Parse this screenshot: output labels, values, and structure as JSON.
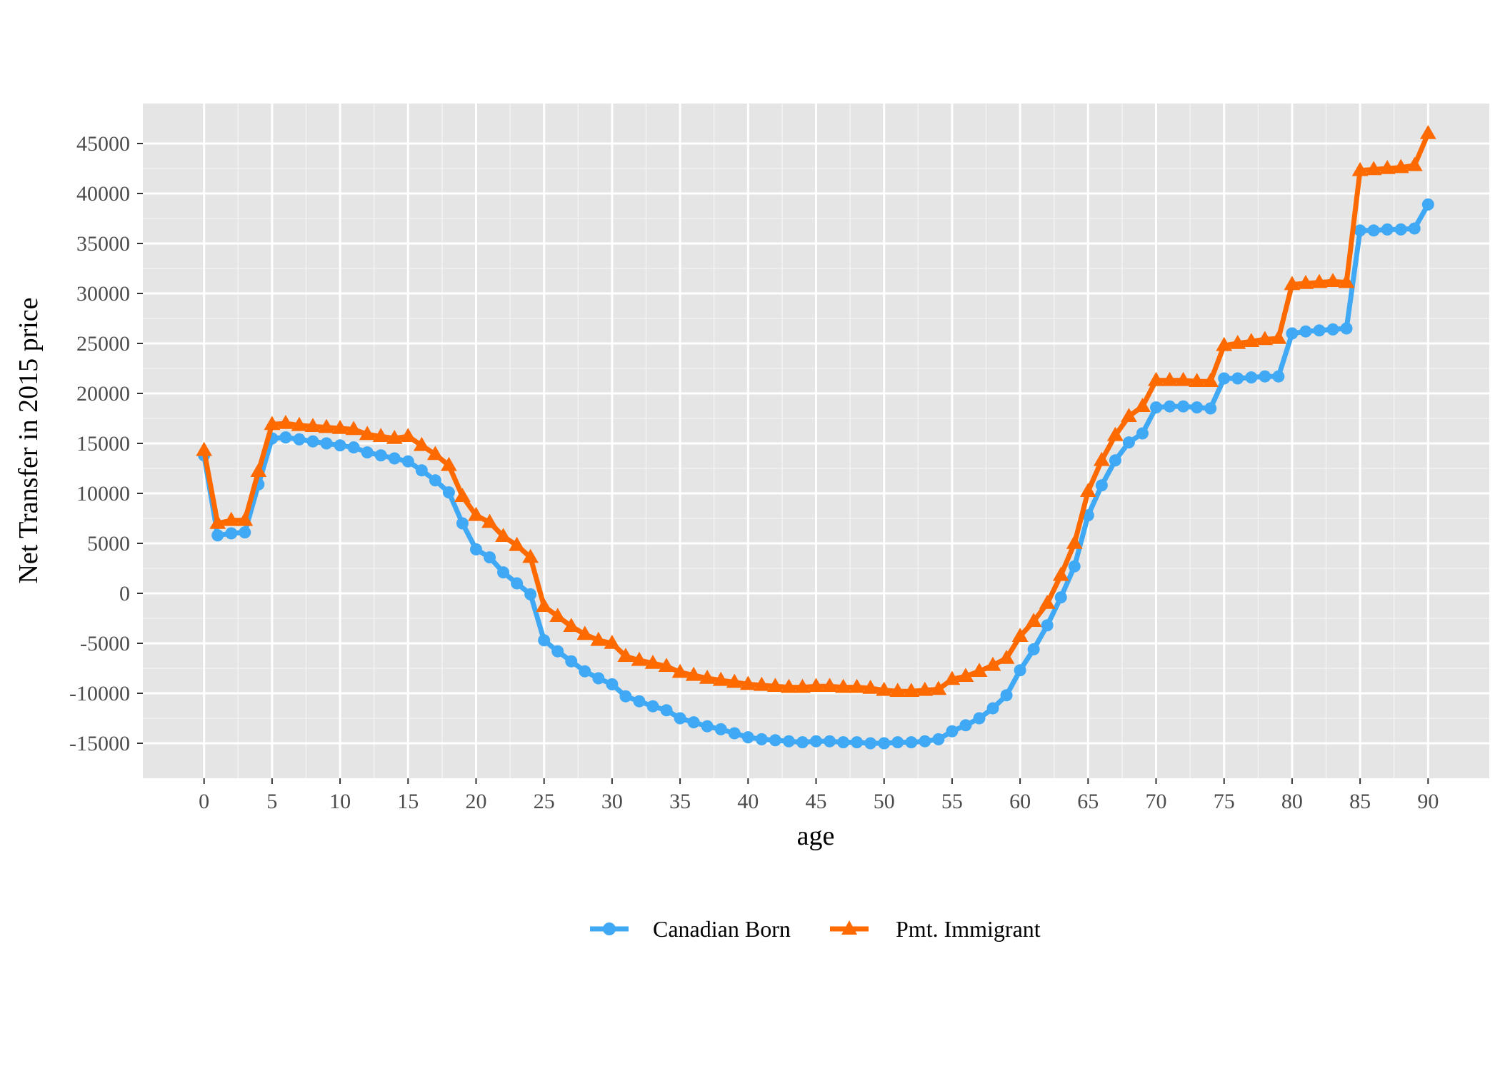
{
  "chart_data": {
    "type": "line",
    "title": "",
    "xlabel": "age",
    "ylabel": "Net Transfer in 2015 price",
    "xlim": [
      -4.5,
      94.5
    ],
    "ylim": [
      -18500,
      49000
    ],
    "x_ticks": [
      0,
      5,
      10,
      15,
      20,
      25,
      30,
      35,
      40,
      45,
      50,
      55,
      60,
      65,
      70,
      75,
      80,
      85,
      90
    ],
    "y_ticks": [
      -15000,
      -10000,
      -5000,
      0,
      5000,
      10000,
      15000,
      20000,
      25000,
      30000,
      35000,
      40000,
      45000
    ],
    "grid": true,
    "background": "#e5e5e5",
    "legend_position": "bottom",
    "x": [
      0,
      1,
      2,
      3,
      4,
      5,
      6,
      7,
      8,
      9,
      10,
      11,
      12,
      13,
      14,
      15,
      16,
      17,
      18,
      19,
      20,
      21,
      22,
      23,
      24,
      25,
      26,
      27,
      28,
      29,
      30,
      31,
      32,
      33,
      34,
      35,
      36,
      37,
      38,
      39,
      40,
      41,
      42,
      43,
      44,
      45,
      46,
      47,
      48,
      49,
      50,
      51,
      52,
      53,
      54,
      55,
      56,
      57,
      58,
      59,
      60,
      61,
      62,
      63,
      64,
      65,
      66,
      67,
      68,
      69,
      70,
      71,
      72,
      73,
      74,
      75,
      76,
      77,
      78,
      79,
      80,
      81,
      82,
      83,
      84,
      85,
      86,
      87,
      88,
      89,
      90
    ],
    "series": [
      {
        "name": "Canadian Born",
        "color": "#3fa9f5",
        "marker": "circle",
        "values": [
          13800,
          5800,
          6000,
          6100,
          10900,
          15500,
          15600,
          15400,
          15200,
          15000,
          14800,
          14600,
          14100,
          13800,
          13500,
          13200,
          12300,
          11300,
          10100,
          7000,
          4400,
          3600,
          2100,
          1000,
          -100,
          -4700,
          -5800,
          -6800,
          -7800,
          -8500,
          -9100,
          -10300,
          -10800,
          -11300,
          -11700,
          -12500,
          -12900,
          -13300,
          -13600,
          -14000,
          -14400,
          -14600,
          -14700,
          -14800,
          -14900,
          -14800,
          -14800,
          -14900,
          -14900,
          -15000,
          -15000,
          -14900,
          -14900,
          -14800,
          -14600,
          -13800,
          -13200,
          -12500,
          -11500,
          -10200,
          -7700,
          -5600,
          -3200,
          -400,
          2700,
          7800,
          10800,
          13300,
          15100,
          16000,
          18600,
          18700,
          18700,
          18600,
          18500,
          21500,
          21500,
          21600,
          21700,
          21700,
          26000,
          26200,
          26300,
          26400,
          26500,
          36300,
          36300,
          36400,
          36400,
          36500,
          38900
        ]
      },
      {
        "name": "Pmt. Immigrant",
        "color": "#ff6a00",
        "marker": "triangle",
        "values": [
          14300,
          7000,
          7300,
          7300,
          12200,
          16900,
          17000,
          16800,
          16700,
          16600,
          16500,
          16400,
          15900,
          15700,
          15500,
          15700,
          14800,
          13900,
          12800,
          9700,
          7800,
          7100,
          5700,
          4800,
          3600,
          -1300,
          -2300,
          -3300,
          -4100,
          -4700,
          -5000,
          -6300,
          -6700,
          -7000,
          -7300,
          -7900,
          -8200,
          -8500,
          -8700,
          -8900,
          -9100,
          -9200,
          -9300,
          -9400,
          -9400,
          -9300,
          -9300,
          -9400,
          -9400,
          -9500,
          -9700,
          -9800,
          -9800,
          -9700,
          -9600,
          -8600,
          -8300,
          -7800,
          -7200,
          -6500,
          -4300,
          -2800,
          -1000,
          1800,
          5000,
          10200,
          13300,
          15800,
          17700,
          18700,
          21300,
          21300,
          21300,
          21200,
          21200,
          24800,
          25000,
          25200,
          25400,
          25500,
          30900,
          31000,
          31100,
          31200,
          31100,
          42300,
          42400,
          42500,
          42600,
          42800,
          46000
        ]
      }
    ]
  }
}
